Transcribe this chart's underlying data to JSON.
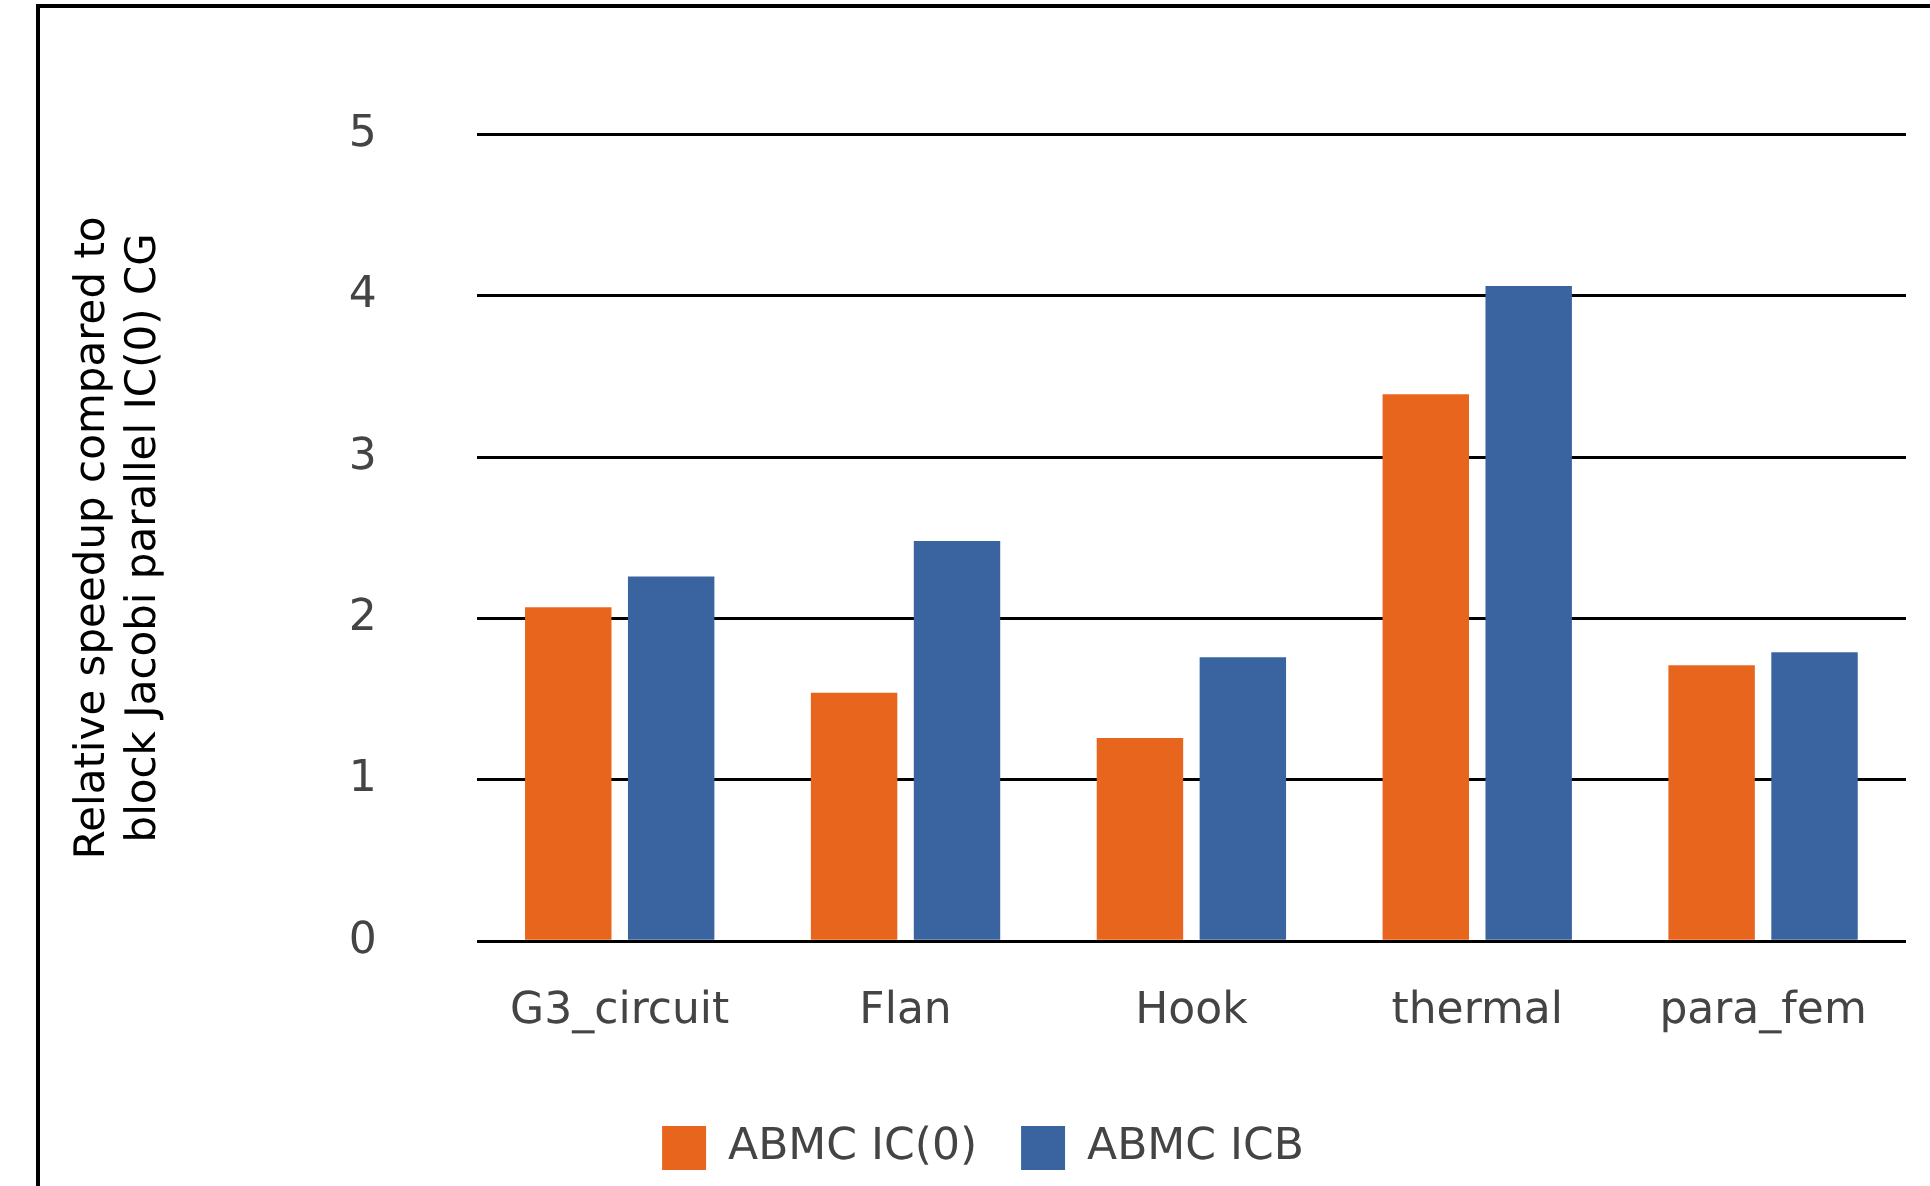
{
  "chart_data": {
    "type": "bar",
    "ylabel": "Relative speedup compared to\nblock Jacobi parallel IC(0) CG",
    "categories": [
      "G3_circuit",
      "Flan",
      "Hook",
      "thermal",
      "para_fem"
    ],
    "series": [
      {
        "name": "ABMC IC(0)",
        "color": "#e8651e",
        "values": [
          2.07,
          1.54,
          1.26,
          3.39,
          1.71
        ]
      },
      {
        "name": "ABMC ICB",
        "color": "#3a64a0",
        "values": [
          2.26,
          2.48,
          1.76,
          4.06,
          1.79
        ]
      }
    ],
    "ylim": [
      0,
      5
    ],
    "yticks": [
      0,
      1,
      2,
      3,
      4,
      5
    ],
    "grid": "y",
    "legend": "bottom"
  }
}
